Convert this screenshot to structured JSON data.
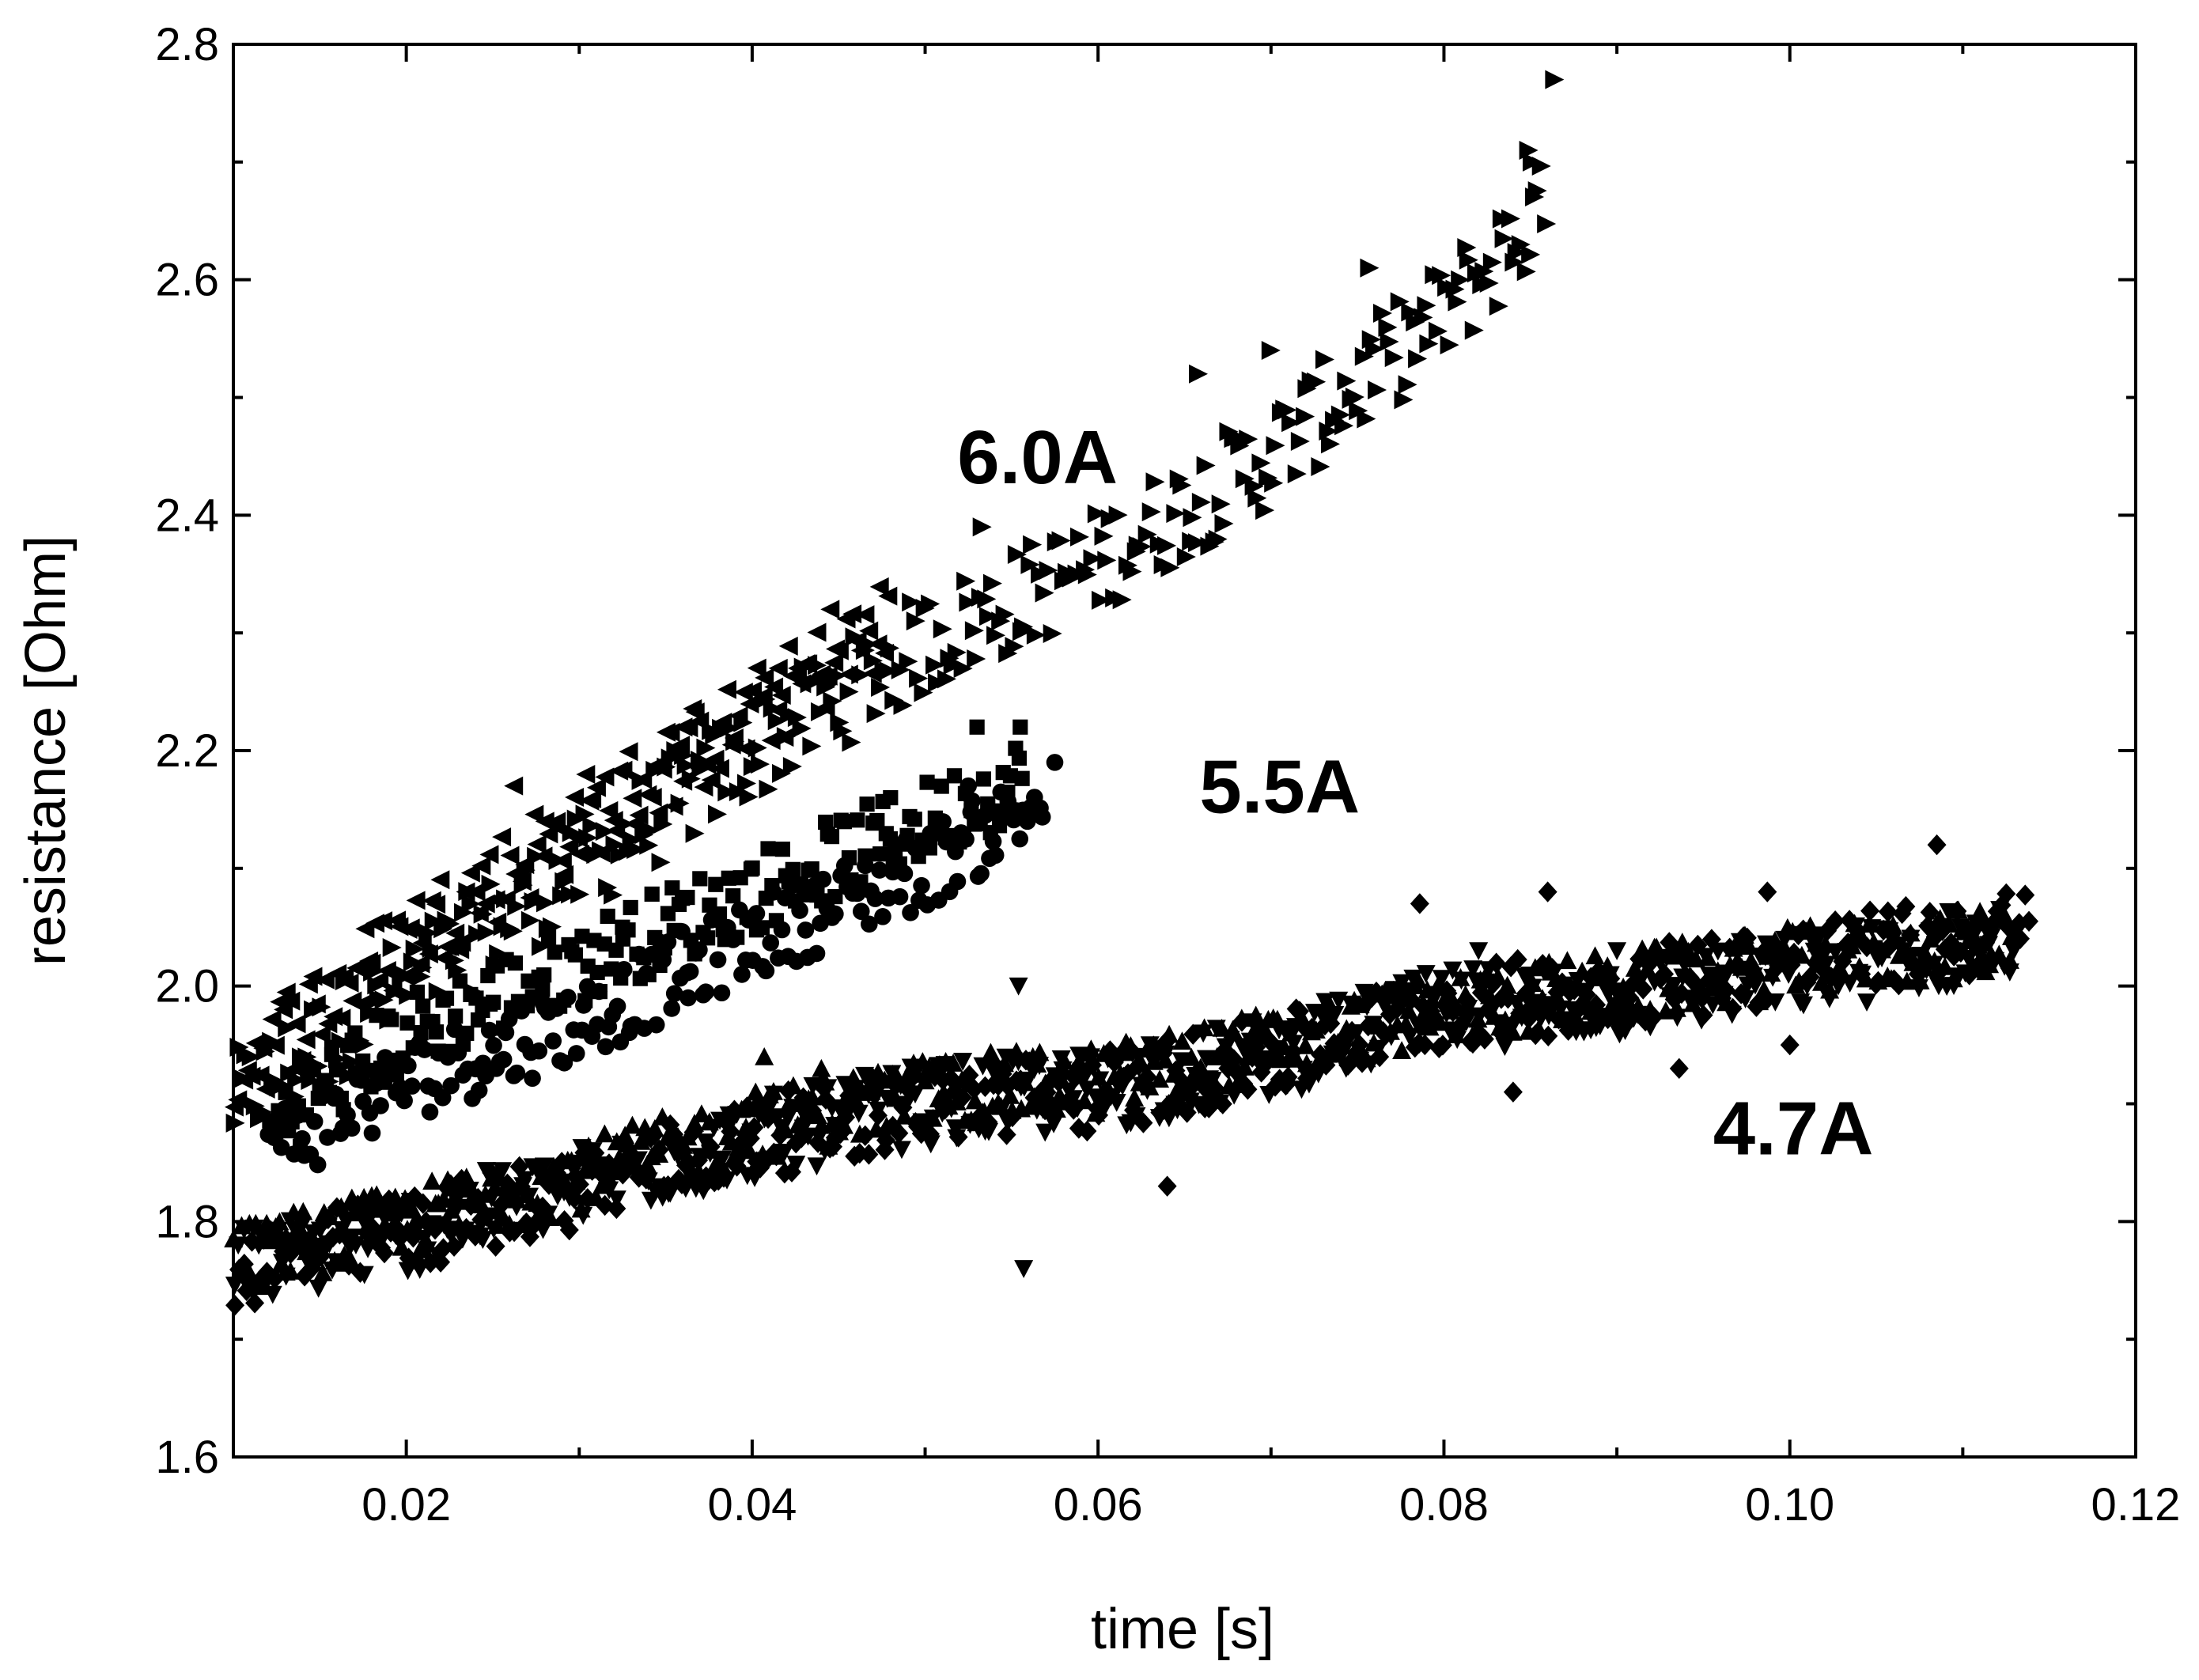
{
  "chart_data": {
    "type": "scatter",
    "xlabel": "time [s]",
    "ylabel": "resistance [Ohm]",
    "xlim": [
      0.01,
      0.12
    ],
    "ylim": [
      1.6,
      2.8
    ],
    "x_ticks": [
      "0.02",
      "0.04",
      "0.06",
      "0.08",
      "0.10",
      "0.12"
    ],
    "y_ticks": [
      "1.6",
      "1.8",
      "2.0",
      "2.2",
      "2.4",
      "2.6",
      "2.8"
    ],
    "x_tick_values": [
      0.02,
      0.04,
      0.06,
      0.08,
      0.1,
      0.12
    ],
    "y_tick_values": [
      1.6,
      1.8,
      2.0,
      2.2,
      2.4,
      2.6,
      2.8
    ],
    "grid": false,
    "annotations": [
      {
        "text": "6.0A",
        "x": 0.0565,
        "y": 2.45
      },
      {
        "text": "5.5A",
        "x": 0.0705,
        "y": 2.17
      },
      {
        "text": "4.7A",
        "x": 0.1002,
        "y": 1.88
      }
    ],
    "series": [
      {
        "marker": "triangle-right",
        "band": 0.045,
        "points": [
          [
            0.01,
            1.9
          ],
          [
            0.02,
            2.0
          ],
          [
            0.03,
            2.1
          ],
          [
            0.04,
            2.2
          ],
          [
            0.05,
            2.29
          ],
          [
            0.06,
            2.36
          ],
          [
            0.07,
            2.45
          ],
          [
            0.08,
            2.57
          ],
          [
            0.086,
            2.66
          ]
        ],
        "outliers": [
          [
            0.0864,
            2.77
          ],
          [
            0.0849,
            2.71
          ],
          [
            0.0851,
            2.7
          ],
          [
            0.0757,
            2.61
          ],
          [
            0.0533,
            2.39
          ],
          [
            0.0658,
            2.52
          ],
          [
            0.07,
            2.54
          ]
        ]
      },
      {
        "marker": "triangle-left",
        "band": 0.04,
        "points": [
          [
            0.01,
            1.93
          ],
          [
            0.02,
            2.04
          ],
          [
            0.03,
            2.14
          ],
          [
            0.04,
            2.23
          ],
          [
            0.048,
            2.31
          ]
        ],
        "outliers": [
          [
            0.0445,
            2.32
          ],
          [
            0.0415,
            2.27
          ],
          [
            0.0262,
            2.17
          ],
          [
            0.036,
            2.22
          ]
        ]
      },
      {
        "marker": "square",
        "band": 0.035,
        "points": [
          [
            0.012,
            1.88
          ],
          [
            0.02,
            1.96
          ],
          [
            0.03,
            2.02
          ],
          [
            0.04,
            2.08
          ],
          [
            0.05,
            2.14
          ],
          [
            0.056,
            2.18
          ]
        ],
        "outliers": [
          [
            0.0555,
            2.22
          ],
          [
            0.053,
            2.22
          ],
          [
            0.048,
            2.16
          ],
          [
            0.0325,
            2.05
          ]
        ]
      },
      {
        "marker": "circle",
        "band": 0.035,
        "points": [
          [
            0.012,
            1.86
          ],
          [
            0.02,
            1.92
          ],
          [
            0.03,
            1.97
          ],
          [
            0.04,
            2.04
          ],
          [
            0.05,
            2.1
          ],
          [
            0.057,
            2.16
          ]
        ],
        "outliers": [
          [
            0.0363,
            1.99
          ],
          [
            0.0252,
            1.93
          ],
          [
            0.0575,
            2.19
          ],
          [
            0.0525,
            2.17
          ]
        ]
      },
      {
        "marker": "triangle-down",
        "band": 0.035,
        "points": [
          [
            0.01,
            1.76
          ],
          [
            0.02,
            1.79
          ],
          [
            0.03,
            1.83
          ],
          [
            0.04,
            1.87
          ],
          [
            0.05,
            1.9
          ],
          [
            0.06,
            1.91
          ],
          [
            0.07,
            1.94
          ],
          [
            0.08,
            1.98
          ],
          [
            0.09,
            1.99
          ],
          [
            0.1,
            2.01
          ],
          [
            0.113,
            2.04
          ]
        ],
        "outliers": [
          [
            0.0557,
            1.76
          ],
          [
            0.0554,
            2.0
          ],
          [
            0.063,
            1.95
          ],
          [
            0.09,
            2.03
          ],
          [
            0.082,
            2.03
          ]
        ]
      },
      {
        "marker": "triangle-up",
        "band": 0.03,
        "points": [
          [
            0.01,
            1.77
          ],
          [
            0.02,
            1.8
          ],
          [
            0.03,
            1.84
          ],
          [
            0.04,
            1.88
          ],
          [
            0.05,
            1.91
          ],
          [
            0.06,
            1.92
          ],
          [
            0.07,
            1.95
          ],
          [
            0.08,
            1.98
          ],
          [
            0.09,
            2.0
          ],
          [
            0.1,
            2.02
          ],
          [
            0.113,
            2.04
          ]
        ],
        "outliers": [
          [
            0.0402,
            1.91
          ],
          [
            0.0407,
            1.94
          ],
          [
            0.044,
            1.93
          ]
        ]
      },
      {
        "marker": "diamond",
        "band": 0.035,
        "points": [
          [
            0.01,
            1.76
          ],
          [
            0.02,
            1.79
          ],
          [
            0.03,
            1.83
          ],
          [
            0.04,
            1.87
          ],
          [
            0.05,
            1.9
          ],
          [
            0.06,
            1.91
          ],
          [
            0.07,
            1.94
          ],
          [
            0.08,
            1.98
          ],
          [
            0.09,
            2.0
          ],
          [
            0.1,
            2.02
          ],
          [
            0.114,
            2.05
          ]
        ],
        "outliers": [
          [
            0.064,
            1.83
          ],
          [
            0.1085,
            2.12
          ],
          [
            0.0987,
            2.08
          ],
          [
            0.0936,
            1.93
          ],
          [
            0.084,
            1.91
          ],
          [
            0.0786,
            2.07
          ],
          [
            0.086,
            2.08
          ],
          [
            0.0305,
            1.85
          ],
          [
            0.1,
            1.95
          ]
        ]
      }
    ]
  }
}
